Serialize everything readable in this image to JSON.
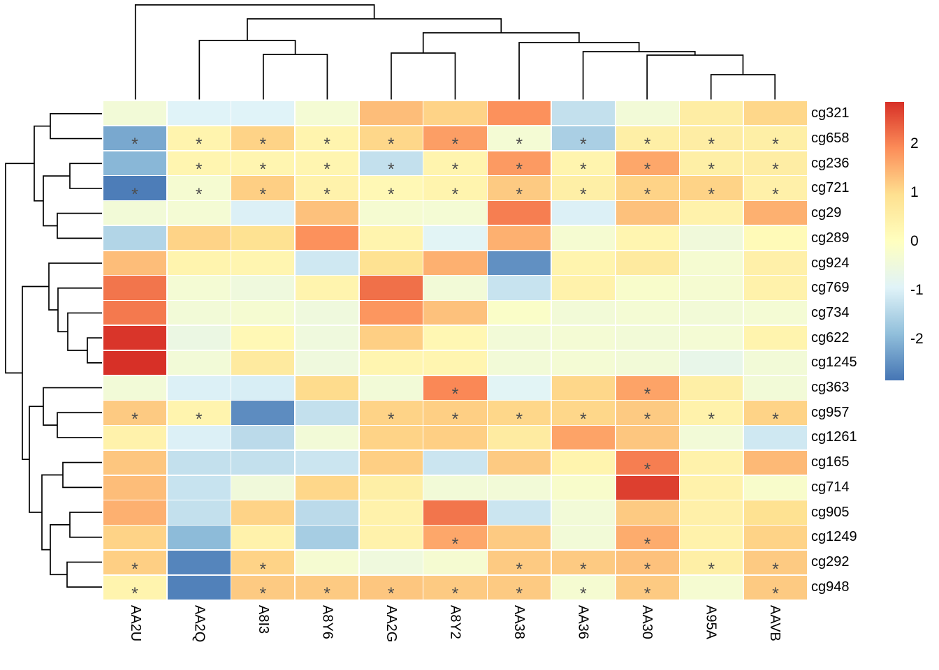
{
  "figure": {
    "kind": "clustered heatmap with dendrograms",
    "background_color": "#ffffff",
    "dendrogram_line_color": "#000000",
    "cell_gap_color": "#ffffff",
    "label_text_color": "#000000",
    "significance_color": "#4d4d4d"
  },
  "chart_data": {
    "type": "heatmap",
    "title": "",
    "xlabel": "",
    "ylabel": "",
    "columns": [
      "AA2U",
      "AA2Q",
      "A8I3",
      "A8Y6",
      "AA2G",
      "A8Y2",
      "AA38",
      "AA36",
      "AA30",
      "A95A",
      "AAVB"
    ],
    "rows": [
      "cg321",
      "cg658",
      "cg236",
      "cg721",
      "cg29",
      "cg289",
      "cg924",
      "cg769",
      "cg734",
      "cg622",
      "cg1245",
      "cg363",
      "cg957",
      "cg1261",
      "cg165",
      "cg714",
      "cg905",
      "cg1249",
      "cg292",
      "cg948"
    ],
    "values": [
      [
        -0.4,
        -0.95,
        -0.95,
        -0.35,
        1.35,
        1.1,
        1.85,
        -1.3,
        -0.4,
        0.55,
        1.05
      ],
      [
        -2.2,
        0.35,
        1.1,
        0.35,
        1.05,
        1.7,
        -0.35,
        -1.6,
        0.5,
        0.55,
        0.5
      ],
      [
        -2.0,
        0.3,
        0.3,
        0.3,
        -1.3,
        0.35,
        1.75,
        0.35,
        1.6,
        0.5,
        0.55
      ],
      [
        -2.75,
        -0.3,
        1.15,
        0.4,
        0.2,
        0.35,
        1.2,
        0.5,
        1.1,
        1.1,
        0.45
      ],
      [
        -0.4,
        -0.35,
        -1.0,
        1.3,
        -0.3,
        -0.35,
        2.05,
        -1.0,
        1.3,
        0.4,
        1.5
      ],
      [
        -1.5,
        1.1,
        0.9,
        1.85,
        0.35,
        -0.9,
        1.5,
        -0.3,
        0.3,
        -0.45,
        0.15
      ],
      [
        1.35,
        0.35,
        0.3,
        -1.15,
        0.9,
        1.5,
        -2.5,
        0.35,
        0.65,
        -0.3,
        0.45
      ],
      [
        2.15,
        -0.35,
        -0.5,
        0.35,
        2.2,
        -0.4,
        -1.25,
        0.4,
        -0.2,
        -0.3,
        0.4
      ],
      [
        2.1,
        -0.4,
        -0.3,
        -0.5,
        1.8,
        1.3,
        -0.15,
        -0.4,
        -0.35,
        -0.4,
        -0.35
      ],
      [
        2.8,
        -0.6,
        0.2,
        -0.5,
        1.15,
        0.25,
        -0.4,
        -0.35,
        -0.4,
        -0.35,
        0.35
      ],
      [
        2.85,
        -0.4,
        0.65,
        -0.5,
        0.3,
        0.3,
        -0.4,
        -0.35,
        -0.4,
        -0.7,
        -0.4
      ],
      [
        -0.4,
        -1.0,
        -1.05,
        1.0,
        -0.4,
        1.95,
        -0.9,
        1.05,
        1.65,
        0.5,
        -0.4
      ],
      [
        1.2,
        0.35,
        -2.55,
        -1.3,
        1.1,
        1.15,
        1.05,
        1.05,
        1.2,
        0.4,
        1.1
      ],
      [
        0.4,
        -1.0,
        -1.4,
        -0.4,
        1.1,
        1.15,
        0.6,
        1.65,
        1.25,
        -0.4,
        -1.15
      ],
      [
        1.25,
        -1.3,
        -1.3,
        -1.2,
        1.15,
        -1.2,
        1.2,
        0.35,
        2.05,
        0.4,
        1.4
      ],
      [
        1.35,
        -1.25,
        -0.45,
        1.05,
        0.5,
        -0.4,
        -0.4,
        -0.2,
        2.7,
        0.4,
        -0.2
      ],
      [
        1.5,
        -1.3,
        1.1,
        -1.4,
        0.4,
        2.15,
        -1.2,
        -0.4,
        1.2,
        0.45,
        0.9
      ],
      [
        1.1,
        -1.95,
        0.4,
        -1.65,
        0.4,
        1.6,
        1.2,
        -0.4,
        1.55,
        0.4,
        1.1
      ],
      [
        1.15,
        -2.65,
        1.1,
        -0.3,
        -0.5,
        -0.3,
        1.2,
        1.2,
        1.3,
        0.5,
        1.2
      ],
      [
        0.35,
        -2.7,
        1.2,
        1.2,
        1.25,
        1.2,
        1.2,
        -0.3,
        1.2,
        -0.3,
        1.2
      ]
    ],
    "significance_marker": "*",
    "significance": [
      [],
      [
        0,
        1,
        2,
        3,
        4,
        5,
        6,
        7,
        8,
        9,
        10
      ],
      [
        1,
        2,
        3,
        4,
        5,
        6,
        7,
        8,
        9,
        10
      ],
      [
        0,
        1,
        2,
        3,
        4,
        5,
        6,
        7,
        8,
        9,
        10
      ],
      [],
      [],
      [],
      [],
      [],
      [],
      [],
      [
        5,
        8
      ],
      [
        0,
        1,
        4,
        5,
        6,
        7,
        8,
        9,
        10
      ],
      [],
      [
        8
      ],
      [],
      [],
      [
        5,
        8
      ],
      [
        0,
        2,
        6,
        7,
        8,
        9,
        10
      ],
      [
        0,
        2,
        3,
        4,
        5,
        6,
        7,
        8,
        10
      ]
    ],
    "legend": {
      "position": "right",
      "tick_labels": [
        "2",
        "1",
        "0",
        "-1",
        "-2"
      ],
      "tick_values": [
        2,
        1,
        0,
        -1,
        -2
      ],
      "domain_min": -2.85,
      "domain_max": 2.85,
      "palette_values": [
        -2.85,
        -1.9,
        -0.95,
        0,
        0.95,
        1.9,
        2.85
      ],
      "palette_colors": [
        "#4575B4",
        "#91BFDB",
        "#E0F3F8",
        "#FFFFBF",
        "#FEE090",
        "#FC8D59",
        "#D73027"
      ]
    },
    "col_dendrogram": {
      "merges": [
        [
          "A8I3",
          "A8Y6",
          78
        ],
        [
          "AA2Q",
          "m0",
          58
        ],
        [
          "AA2G",
          "A8Y2",
          76
        ],
        [
          "A95A",
          "AAVB",
          107
        ],
        [
          "AA30",
          "m3",
          79
        ],
        [
          "AA36",
          "m4",
          74
        ],
        [
          "AA38",
          "m5",
          61
        ],
        [
          "m2",
          "m6",
          47
        ],
        [
          "m1",
          "m7",
          27
        ],
        [
          "AA2U",
          "m8",
          7
        ]
      ]
    },
    "row_dendrogram": {
      "merges": [
        [
          "cg321",
          "cg658",
          72
        ],
        [
          "cg236",
          "cg721",
          100
        ],
        [
          "cg29",
          "cg289",
          82
        ],
        [
          "m1",
          "m2",
          62
        ],
        [
          "m0",
          "m3",
          49
        ],
        [
          "cg622",
          "cg1245",
          125
        ],
        [
          "cg734",
          "m5",
          97
        ],
        [
          "cg769",
          "m6",
          83
        ],
        [
          "cg924",
          "m7",
          70
        ],
        [
          "cg957",
          "cg1261",
          82
        ],
        [
          "cg363",
          "m9",
          62
        ],
        [
          "cg165",
          "cg714",
          90
        ],
        [
          "cg905",
          "cg1249",
          100
        ],
        [
          "cg292",
          "cg948",
          96
        ],
        [
          "m12",
          "m13",
          72
        ],
        [
          "m11",
          "m14",
          60
        ],
        [
          "m10",
          "m15",
          42
        ],
        [
          "m8",
          "m16",
          32
        ],
        [
          "m4",
          "m17",
          8
        ]
      ]
    }
  }
}
